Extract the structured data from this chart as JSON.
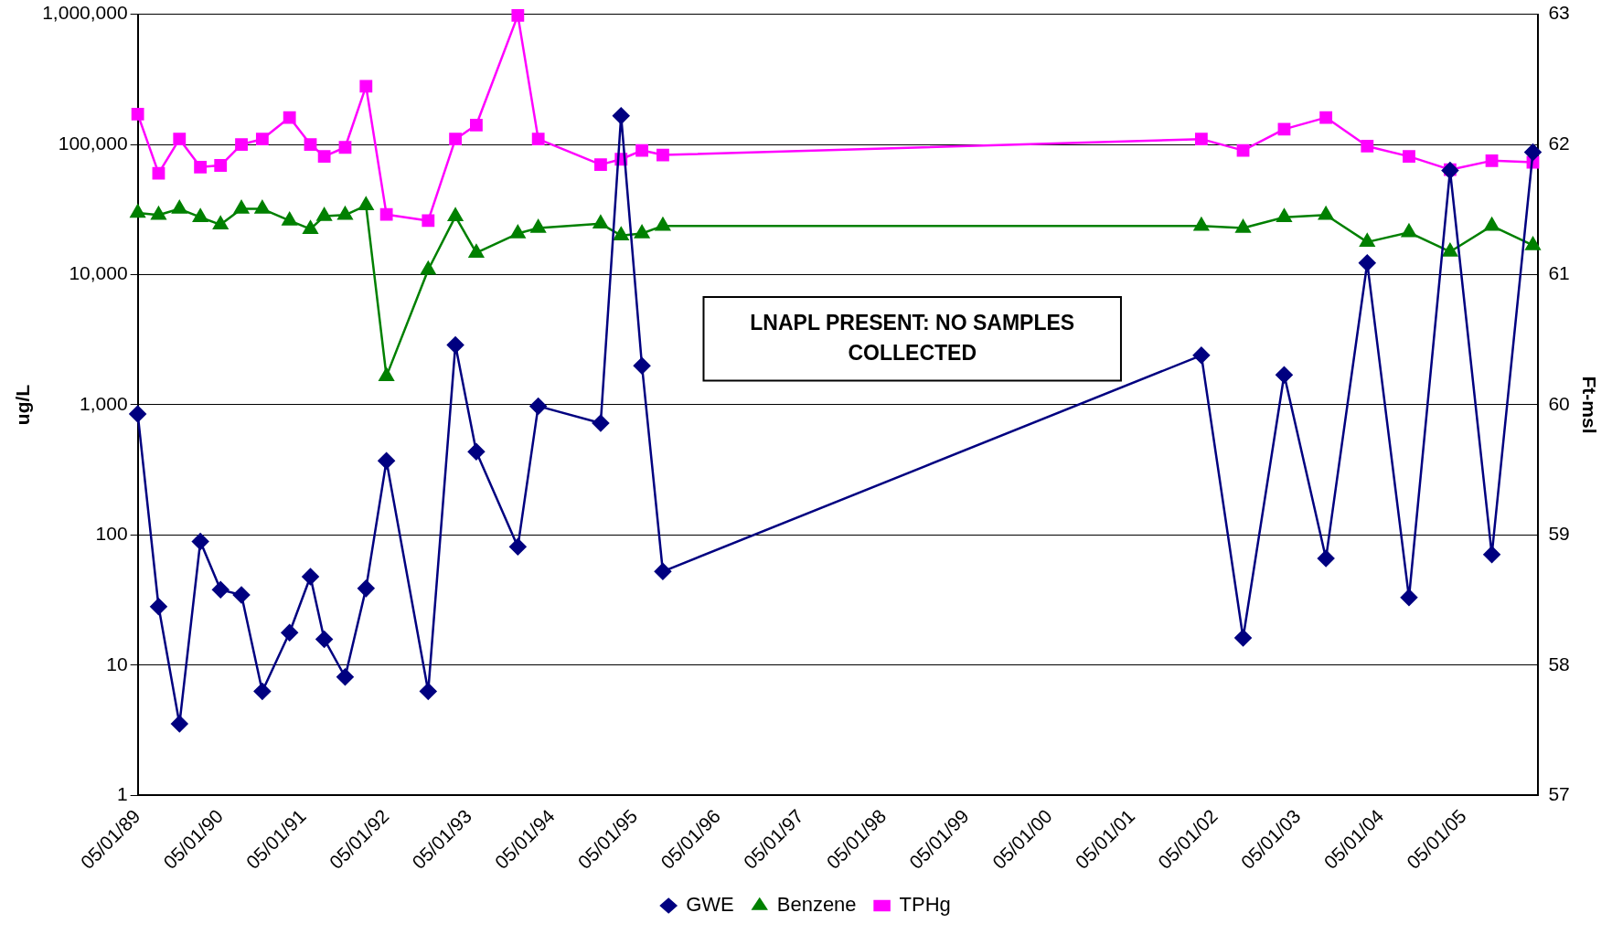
{
  "chart_data": {
    "type": "line",
    "ylabel": "ug/L",
    "y2label": "Ft-msl",
    "log": "y",
    "grid": "y",
    "legend": "bottom",
    "annotations": [
      "LNAPL PRESENT: NO SAMPLES COLLECTED"
    ],
    "x": [
      "1989-05",
      "1989-08",
      "1989-11",
      "1990-02",
      "1990-05",
      "1990-08",
      "1990-11",
      "1991-03",
      "1991-06",
      "1991-08",
      "1991-11",
      "1992-02",
      "1992-05",
      "1992-11",
      "1993-03",
      "1993-06",
      "1993-12",
      "1994-03",
      "1994-12",
      "1995-03",
      "1995-06",
      "1995-09",
      "2002-03",
      "2002-09",
      "2003-03",
      "2003-09",
      "2004-03",
      "2004-09",
      "2005-03",
      "2005-09",
      "2006-03"
    ],
    "xlim": [
      "1989-05-01",
      "2006-03-25"
    ],
    "xticks": [
      {
        "value": "1989-05-01",
        "label": "05/01/89"
      },
      {
        "value": "1990-05-01",
        "label": "05/01/90"
      },
      {
        "value": "1991-05-01",
        "label": "05/01/91"
      },
      {
        "value": "1992-05-01",
        "label": "05/01/92"
      },
      {
        "value": "1993-05-01",
        "label": "05/01/93"
      },
      {
        "value": "1994-05-01",
        "label": "05/01/94"
      },
      {
        "value": "1995-05-01",
        "label": "05/01/95"
      },
      {
        "value": "1996-05-01",
        "label": "05/01/96"
      },
      {
        "value": "1997-05-01",
        "label": "05/01/97"
      },
      {
        "value": "1998-05-01",
        "label": "05/01/98"
      },
      {
        "value": "1999-05-01",
        "label": "05/01/99"
      },
      {
        "value": "2000-05-01",
        "label": "05/01/00"
      },
      {
        "value": "2001-05-01",
        "label": "05/01/01"
      },
      {
        "value": "2002-05-01",
        "label": "05/01/02"
      },
      {
        "value": "2003-05-01",
        "label": "05/01/03"
      },
      {
        "value": "2004-05-01",
        "label": "05/01/04"
      },
      {
        "value": "2005-05-01",
        "label": "05/01/05"
      }
    ],
    "ylim": [
      1,
      1000000
    ],
    "yticks": [
      1,
      10,
      {
        "value": 100,
        "label": "100"
      },
      {
        "value": 1000,
        "label": "1,000"
      },
      {
        "value": 10000,
        "label": "10,000"
      },
      {
        "value": 100000,
        "label": "100,000"
      },
      {
        "value": 1000000,
        "label": "1,000,000"
      }
    ],
    "y2lim": [
      57,
      63
    ],
    "y2ticks": [
      57,
      58,
      59,
      60,
      61,
      62,
      63
    ],
    "series": [
      {
        "name": "TPHg",
        "color": "#ff00ff",
        "marker": "square",
        "values": [
          171000,
          60000,
          110000,
          67000,
          69000,
          100000,
          110000,
          161000,
          100000,
          81000,
          95000,
          280000,
          29000,
          26000,
          110000,
          141000,
          980000,
          110000,
          70000,
          77000,
          90000,
          83000,
          110000,
          90000,
          131000,
          161000,
          97000,
          81000,
          64000,
          75000,
          73000
        ]
      },
      {
        "name": "Benzene",
        "color": "#008000",
        "marker": "triangle",
        "values": [
          29800,
          28700,
          32000,
          27600,
          24200,
          32000,
          32000,
          26000,
          22400,
          28100,
          28700,
          34000,
          1660,
          10900,
          28000,
          14700,
          20700,
          22800,
          24600,
          20000,
          20700,
          23700,
          23700,
          22800,
          27600,
          28700,
          17800,
          21100,
          15000,
          23700,
          16800
        ]
      },
      {
        "name": "GWE",
        "color": "#000080",
        "marker": "diamond",
        "axis": "y2",
        "values": [
          59.93,
          58.45,
          57.55,
          58.95,
          58.58,
          58.54,
          57.8,
          58.25,
          58.68,
          58.2,
          57.91,
          58.59,
          59.57,
          57.8,
          60.46,
          59.64,
          58.91,
          59.99,
          59.86,
          62.22,
          60.3,
          58.72,
          60.38,
          58.21,
          60.23,
          58.82,
          61.09,
          58.52,
          61.8,
          58.85,
          61.94
        ]
      }
    ]
  }
}
